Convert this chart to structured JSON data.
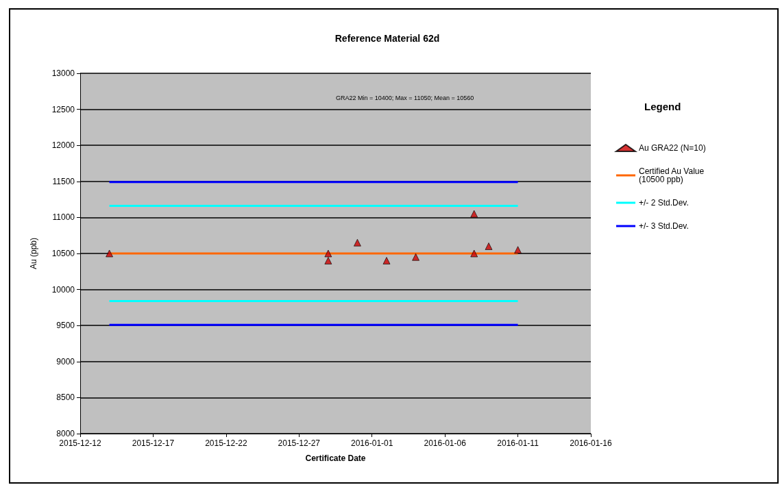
{
  "chart_data": {
    "type": "scatter",
    "title": "Reference Material 62d",
    "xlabel": "Certificate Date",
    "ylabel": "Au (ppb)",
    "legend_title": "Legend",
    "annotations": [
      "GRA22 Min = 10400; Max = 11050; Mean = 10560"
    ],
    "series": [
      {
        "name": "Au GRA22 (N=10)",
        "color": "#cc0000",
        "marker": "triangle",
        "x": [
          "2015-12-14",
          "2015-12-29",
          "2015-12-29",
          "2015-12-31",
          "2016-01-02",
          "2016-01-04",
          "2016-01-08",
          "2016-01-08",
          "2016-01-09",
          "2016-01-11"
        ],
        "values": [
          10500,
          10500,
          10400,
          10650,
          10400,
          10450,
          11050,
          10500,
          10600,
          10550
        ]
      },
      {
        "name": "Certified Au Value (10500 ppb)",
        "type": "line",
        "color": "#ff6600",
        "marker": "none",
        "x": [
          "2015-12-14",
          "2016-01-11"
        ],
        "values": [
          10500,
          10500
        ]
      },
      {
        "name": "+/- 2 Std.Dev.",
        "type": "line",
        "color": "#00ffff",
        "marker": "none",
        "x": [
          "2015-12-14",
          "2016-01-11"
        ],
        "values": [
          11160,
          11160
        ]
      },
      {
        "type": "line",
        "color": "#00ffff",
        "marker": "none",
        "x": [
          "2015-12-14",
          "2016-01-11"
        ],
        "values": [
          9840,
          9840
        ]
      },
      {
        "name": "+/- 3 Std.Dev.",
        "type": "line",
        "color": "#0000ff",
        "marker": "none",
        "x": [
          "2015-12-14",
          "2016-01-11"
        ],
        "values": [
          11490,
          11490
        ]
      },
      {
        "type": "line",
        "color": "#0000ff",
        "marker": "none",
        "x": [
          "2015-12-14",
          "2016-01-11"
        ],
        "values": [
          9510,
          9510
        ]
      }
    ],
    "xlim": [
      "2015-12-12",
      "2016-01-16"
    ],
    "xticks": [
      "2015-12-12",
      "2015-12-17",
      "2015-12-22",
      "2015-12-27",
      "2016-01-01",
      "2016-01-06",
      "2016-01-11",
      "2016-01-16"
    ],
    "ylim": [
      8000,
      13000
    ],
    "yticks": [
      8000,
      8500,
      9000,
      9500,
      10000,
      10500,
      11000,
      11500,
      12000,
      12500,
      13000
    ],
    "grid": "y",
    "legend": "right"
  }
}
